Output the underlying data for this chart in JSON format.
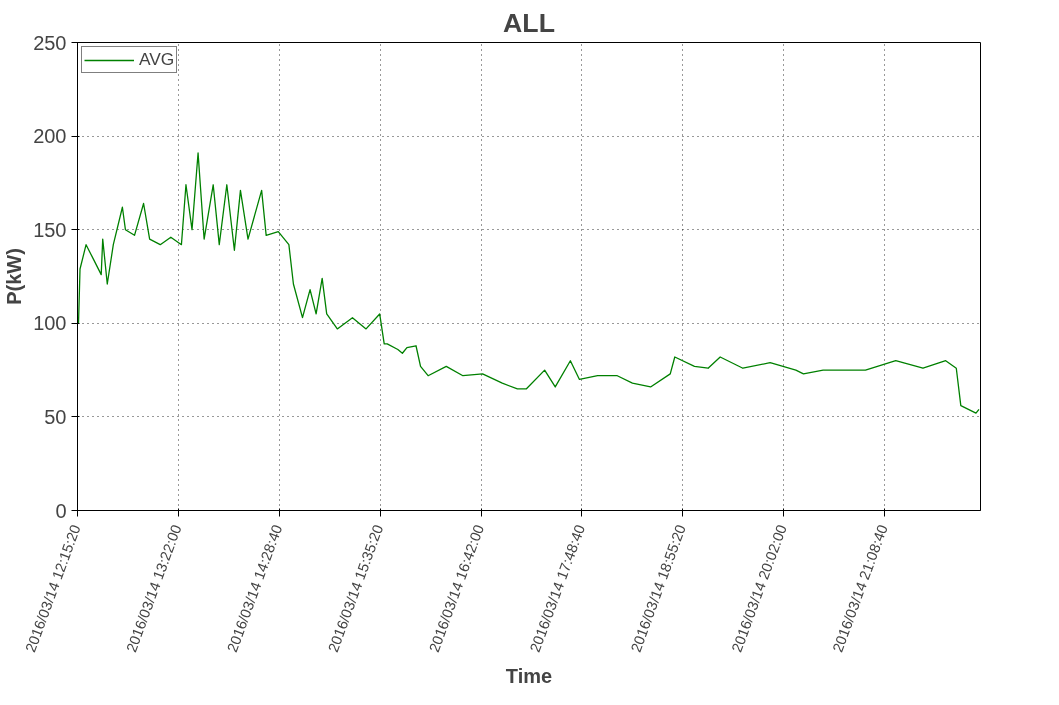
{
  "chart_data": {
    "type": "line",
    "title": "ALL",
    "xlabel": "Time",
    "ylabel": "P(kW)",
    "xlim": [
      "2016-03-14T12:15:20",
      "2016-03-14T22:12"
    ],
    "ylim": [
      0,
      250
    ],
    "yticks": [
      0,
      50,
      100,
      150,
      200,
      250
    ],
    "xticks": [
      {
        "value": "2016-03-14T12:15:20",
        "label": "2016/03/14  12:15:20"
      },
      {
        "value": "2016-03-14T13:22:00",
        "label": "2016/03/14  13:22:00"
      },
      {
        "value": "2016-03-14T14:28:40",
        "label": "2016/03/14  14:28:40"
      },
      {
        "value": "2016-03-14T15:35:20",
        "label": "2016/03/14  15:35:20"
      },
      {
        "value": "2016-03-14T16:42:00",
        "label": "2016/03/14  16:42:00"
      },
      {
        "value": "2016-03-14T17:48:40",
        "label": "2016/03/14  17:48:40"
      },
      {
        "value": "2016-03-14T18:55:20",
        "label": "2016/03/14  18:55:20"
      },
      {
        "value": "2016-03-14T20:02:00",
        "label": "2016/03/14  20:02:00"
      },
      {
        "value": "2016-03-14T21:08:40",
        "label": "2016/03/14  21:08:40"
      }
    ],
    "grid": true,
    "legend": "top left",
    "marker": "none",
    "line_style": "solid",
    "x": [
      "2016-03-14T12:16",
      "2016-03-14T12:17",
      "2016-03-14T12:21",
      "2016-03-14T12:26",
      "2016-03-14T12:31",
      "2016-03-14T12:32",
      "2016-03-14T12:35",
      "2016-03-14T12:39",
      "2016-03-14T12:45",
      "2016-03-14T12:47",
      "2016-03-14T12:53",
      "2016-03-14T12:59",
      "2016-03-14T13:03",
      "2016-03-14T13:10",
      "2016-03-14T13:17",
      "2016-03-14T13:24",
      "2016-03-14T13:27",
      "2016-03-14T13:31",
      "2016-03-14T13:35",
      "2016-03-14T13:39",
      "2016-03-14T13:45",
      "2016-03-14T13:49",
      "2016-03-14T13:54",
      "2016-03-14T13:59",
      "2016-03-14T14:03",
      "2016-03-14T14:08",
      "2016-03-14T14:17",
      "2016-03-14T14:20",
      "2016-03-14T14:28",
      "2016-03-14T14:35",
      "2016-03-14T14:38",
      "2016-03-14T14:44",
      "2016-03-14T14:49",
      "2016-03-14T14:53",
      "2016-03-14T14:57",
      "2016-03-14T15:00",
      "2016-03-14T15:07",
      "2016-03-14T15:17",
      "2016-03-14T15:26",
      "2016-03-14T15:35",
      "2016-03-14T15:38",
      "2016-03-14T15:40",
      "2016-03-14T15:47",
      "2016-03-14T15:50",
      "2016-03-14T15:53",
      "2016-03-14T15:59",
      "2016-03-14T16:02",
      "2016-03-14T16:07",
      "2016-03-14T16:19",
      "2016-03-14T16:30",
      "2016-03-14T16:43",
      "2016-03-14T16:56",
      "2016-03-14T17:06",
      "2016-03-14T17:12",
      "2016-03-14T17:24",
      "2016-03-14T17:31",
      "2016-03-14T17:41",
      "2016-03-14T17:47",
      "2016-03-14T17:59",
      "2016-03-14T18:12",
      "2016-03-14T18:22",
      "2016-03-14T18:34",
      "2016-03-14T18:47",
      "2016-03-14T18:50",
      "2016-03-14T19:03",
      "2016-03-14T19:12",
      "2016-03-14T19:20",
      "2016-03-14T19:35",
      "2016-03-14T19:53",
      "2016-03-14T20:10",
      "2016-03-14T20:15",
      "2016-03-14T20:28",
      "2016-03-14T20:44",
      "2016-03-14T20:56",
      "2016-03-14T21:16",
      "2016-03-14T21:34",
      "2016-03-14T21:49",
      "2016-03-14T21:56",
      "2016-03-14T21:59",
      "2016-03-14T22:09",
      "2016-03-14T22:11"
    ],
    "series": [
      {
        "name": "AVG",
        "color": "#008000",
        "values": [
          100,
          129,
          142,
          134,
          126,
          145,
          121,
          142,
          162,
          150,
          147,
          164,
          145,
          142,
          146,
          142,
          174,
          150,
          191,
          145,
          174,
          142,
          174,
          139,
          171,
          145,
          171,
          147,
          149,
          142,
          121,
          103,
          118,
          105,
          124,
          105,
          97,
          103,
          97,
          105,
          89,
          89,
          86,
          84,
          87,
          88,
          77,
          72,
          77,
          72,
          73,
          68,
          65,
          65,
          75,
          66,
          80,
          70,
          72,
          72,
          68,
          66,
          73,
          82,
          77,
          76,
          82,
          76,
          79,
          75,
          73,
          75,
          75,
          75,
          80,
          76,
          80,
          76,
          56,
          52,
          54
        ]
      }
    ]
  }
}
